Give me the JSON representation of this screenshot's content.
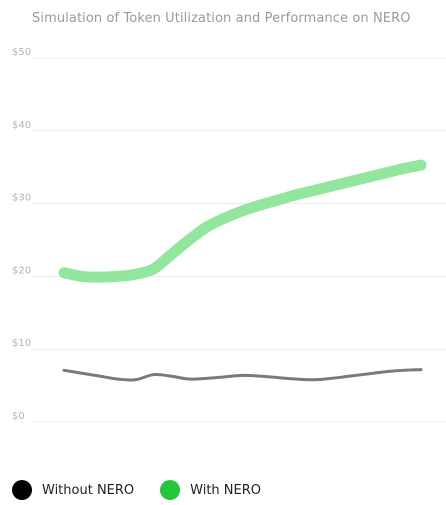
{
  "chart_data": {
    "type": "line",
    "title": "Simulation of Token Utilization and Performance on NERO",
    "xlabel": "",
    "ylabel": "",
    "ylim": [
      0,
      50
    ],
    "y_ticks": [
      "$0",
      "$10",
      "$20",
      "$30",
      "$40",
      "$50"
    ],
    "grid": true,
    "legend_position": "bottom-left",
    "x": [
      0,
      1,
      2,
      3,
      4,
      5,
      6,
      7,
      8,
      9,
      10,
      11,
      12,
      13,
      14,
      15,
      16,
      17,
      18,
      19,
      20
    ],
    "series": [
      {
        "name": "Without NERO",
        "color": "#000000",
        "line_color": "#7a7a7a",
        "values": [
          7.1,
          6.7,
          6.3,
          5.9,
          5.8,
          6.5,
          6.3,
          5.9,
          6.0,
          6.2,
          6.4,
          6.3,
          6.1,
          5.9,
          5.8,
          6.0,
          6.3,
          6.6,
          6.9,
          7.1,
          7.2
        ]
      },
      {
        "name": "With NERO",
        "color": "#22c73a",
        "line_color": "#93e69e",
        "values": [
          20.5,
          20.0,
          19.9,
          20.0,
          20.3,
          21.0,
          23.0,
          25.0,
          26.8,
          28.0,
          29.0,
          29.8,
          30.5,
          31.2,
          31.8,
          32.4,
          33.0,
          33.6,
          34.2,
          34.8,
          35.3
        ]
      }
    ]
  }
}
